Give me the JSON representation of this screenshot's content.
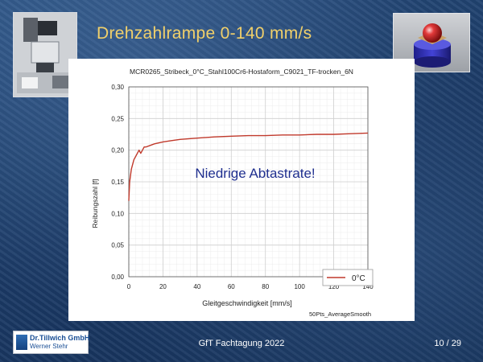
{
  "slide": {
    "title": "Drehzahlrampe 0-140 mm/s",
    "footer": "GfT Fachtagung 2022",
    "page": "10 / 29",
    "logo_company": "Dr.Tillwich GmbH",
    "logo_person": "Werner Stehr"
  },
  "colors": {
    "title": "#f1d06a",
    "curve": "#c0392b",
    "annotation": "#1f2f8f"
  },
  "chart_data": {
    "type": "line",
    "title": "MCR0265_Stribeck_0°C_Stahl100Cr6-Hostaform_C9021_TF-trocken_6N",
    "xlabel": "Gleitgeschwindigkeit [mm/s]",
    "ylabel": "Reibungszahl [f]",
    "xlim": [
      0,
      140
    ],
    "ylim": [
      0,
      0.3
    ],
    "xticks": [
      "0",
      "20",
      "40",
      "60",
      "80",
      "100",
      "120",
      "140"
    ],
    "yticks": [
      "0,00",
      "0,05",
      "0,10",
      "0,15",
      "0,20",
      "0,25",
      "0,30"
    ],
    "annotation": "Niedrige Abtastrate!",
    "footnote": "50Pts_AverageSmooth",
    "grid": true,
    "legend_position": "bottom-right",
    "series": [
      {
        "name": "0°C",
        "x": [
          0,
          0.5,
          1,
          1.5,
          2,
          3,
          4,
          5,
          6,
          7,
          8,
          9,
          10,
          12,
          15,
          20,
          25,
          30,
          40,
          50,
          60,
          70,
          80,
          90,
          100,
          110,
          120,
          130,
          140
        ],
        "y": [
          0.12,
          0.15,
          0.16,
          0.17,
          0.175,
          0.185,
          0.19,
          0.195,
          0.2,
          0.195,
          0.2,
          0.205,
          0.205,
          0.207,
          0.21,
          0.213,
          0.215,
          0.217,
          0.219,
          0.221,
          0.222,
          0.223,
          0.223,
          0.224,
          0.224,
          0.225,
          0.225,
          0.226,
          0.227
        ]
      }
    ]
  }
}
